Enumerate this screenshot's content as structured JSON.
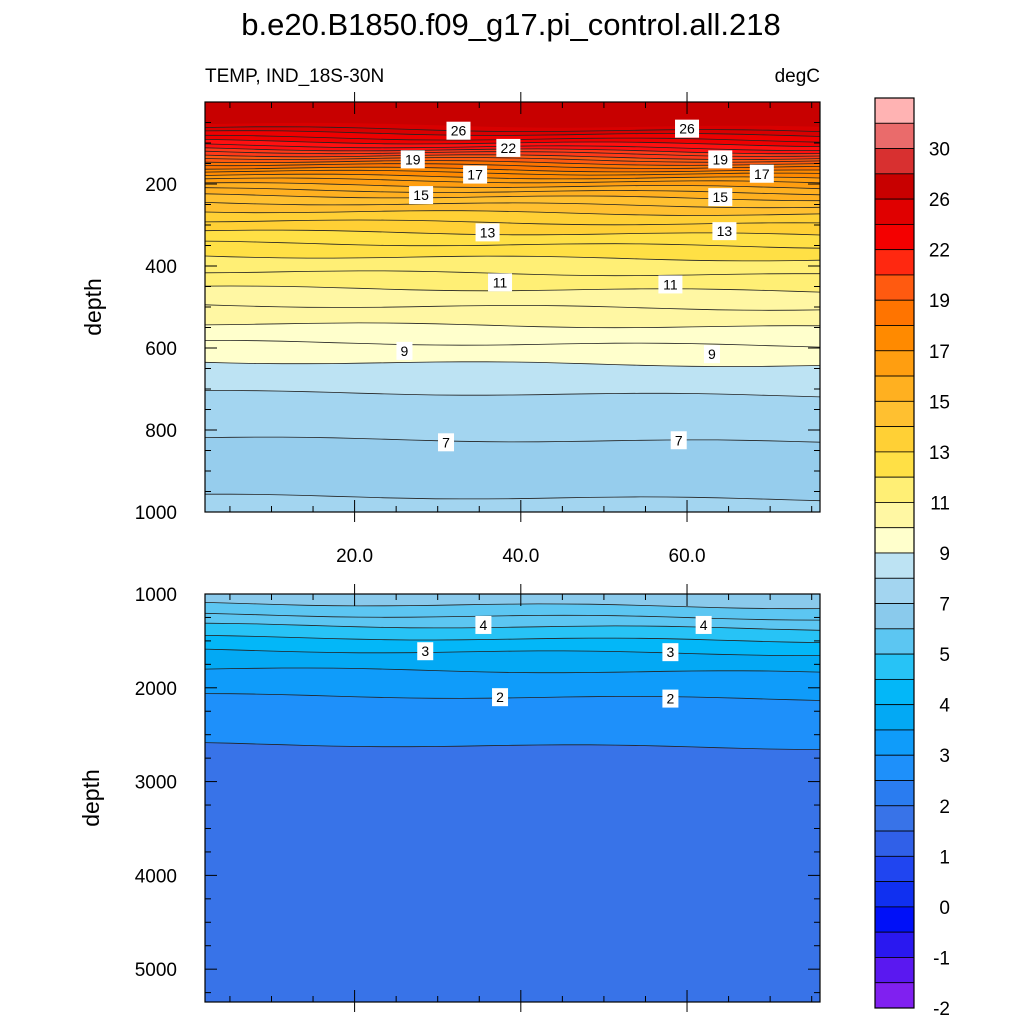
{
  "chart_data": [
    {
      "type": "contour",
      "title": "b.e20.B1850.f09_g17.pi_control.all.218",
      "subtitle_left": "TEMP, IND_18S-30N",
      "subtitle_right": "degC",
      "ylabel": "depth",
      "xlim": [
        2,
        76
      ],
      "ylim": [
        0,
        1000
      ],
      "y_inverted": true,
      "x_ticks": [
        20,
        40,
        60
      ],
      "x_tick_labels": [
        "20.0",
        "40.0",
        "60.0"
      ],
      "y_ticks": [
        200,
        400,
        600,
        800,
        1000
      ],
      "y_tick_labels": [
        "200",
        "400",
        "600",
        "800",
        "1000"
      ],
      "bands": [
        {
          "max": 1000,
          "color": "#a3d5f0"
        },
        {
          "max": 965,
          "color": "#96cded"
        },
        {
          "max": 825,
          "color": "#a3d5f0"
        },
        {
          "max": 712,
          "color": "#bde3f3"
        },
        {
          "max": 638,
          "color": "#ffffcc"
        },
        {
          "max": 545,
          "color": "#fff7a3"
        },
        {
          "max": 457,
          "color": "#ffef75"
        },
        {
          "max": 380,
          "color": "#ffe045"
        },
        {
          "max": 320,
          "color": "#ffd035"
        },
        {
          "max": 270,
          "color": "#ffc030"
        },
        {
          "max": 232,
          "color": "#ffb020"
        },
        {
          "max": 205,
          "color": "#ff9e10"
        },
        {
          "max": 183,
          "color": "#ff8a00"
        },
        {
          "max": 165,
          "color": "#ff7400"
        },
        {
          "max": 148,
          "color": "#ff5a10"
        },
        {
          "max": 133,
          "color": "#ff3a18"
        },
        {
          "max": 118,
          "color": "#ff1010"
        },
        {
          "max": 100,
          "color": "#ee0000"
        },
        {
          "max": 78,
          "color": "#d80000"
        },
        {
          "max": 58,
          "color": "#c80000"
        }
      ],
      "contour_depths": [
        965,
        825,
        712,
        638,
        590,
        545,
        500,
        457,
        418,
        380,
        348,
        320,
        294,
        270,
        250,
        232,
        218,
        205,
        193,
        183,
        173,
        165,
        156,
        148,
        140,
        133,
        125,
        118,
        110,
        100,
        90,
        78,
        68
      ],
      "contour_labels": [
        {
          "text": "26",
          "x": 32.5,
          "y": 70
        },
        {
          "text": "26",
          "x": 60,
          "y": 65
        },
        {
          "text": "22",
          "x": 38.5,
          "y": 112
        },
        {
          "text": "19",
          "x": 27,
          "y": 140
        },
        {
          "text": "19",
          "x": 64,
          "y": 140
        },
        {
          "text": "17",
          "x": 34.5,
          "y": 177
        },
        {
          "text": "17",
          "x": 69,
          "y": 175
        },
        {
          "text": "15",
          "x": 28,
          "y": 227
        },
        {
          "text": "15",
          "x": 64,
          "y": 232
        },
        {
          "text": "13",
          "x": 36,
          "y": 318
        },
        {
          "text": "13",
          "x": 64.5,
          "y": 315
        },
        {
          "text": "11",
          "x": 37.5,
          "y": 440
        },
        {
          "text": "11",
          "x": 58,
          "y": 445
        },
        {
          "text": "9",
          "x": 26,
          "y": 607
        },
        {
          "text": "9",
          "x": 63,
          "y": 615
        },
        {
          "text": "7",
          "x": 31,
          "y": 830
        },
        {
          "text": "7",
          "x": 59,
          "y": 825
        }
      ]
    },
    {
      "type": "contour",
      "ylabel": "depth",
      "xlim": [
        2,
        76
      ],
      "ylim": [
        1000,
        5350
      ],
      "y_inverted": true,
      "y_ticks": [
        1000,
        2000,
        3000,
        4000,
        5000
      ],
      "y_tick_labels": [
        "1000",
        "2000",
        "3000",
        "4000",
        "5000"
      ],
      "bands": [
        {
          "max": 5350,
          "color": "#3873e8"
        },
        {
          "max": 2620,
          "color": "#1e90fa"
        },
        {
          "max": 2100,
          "color": "#0f9cfa"
        },
        {
          "max": 1820,
          "color": "#03a9f4"
        },
        {
          "max": 1620,
          "color": "#03b7f8"
        },
        {
          "max": 1480,
          "color": "#27c3f6"
        },
        {
          "max": 1350,
          "color": "#5cc6f2"
        },
        {
          "max": 1120,
          "color": "#8acaec"
        }
      ],
      "contour_depths": [
        1120,
        1240,
        1350,
        1480,
        1620,
        1820,
        2100,
        2620
      ],
      "contour_labels": [
        {
          "text": "4",
          "x": 35.5,
          "y": 1330
        },
        {
          "text": "4",
          "x": 62,
          "y": 1330
        },
        {
          "text": "3",
          "x": 28.5,
          "y": 1610
        },
        {
          "text": "3",
          "x": 58,
          "y": 1620
        },
        {
          "text": "2",
          "x": 37.5,
          "y": 2100
        },
        {
          "text": "2",
          "x": 58,
          "y": 2115
        }
      ]
    }
  ],
  "colorbar": {
    "labels": [
      "30",
      "26",
      "22",
      "19",
      "17",
      "15",
      "13",
      "11",
      "9",
      "7",
      "5",
      "4",
      "3",
      "2",
      "1",
      "0",
      "-1",
      "-2"
    ],
    "colors": [
      "#ffb3b3",
      "#ea6b6b",
      "#d83030",
      "#c80000",
      "#e00000",
      "#f40000",
      "#ff2810",
      "#ff5a10",
      "#ff7400",
      "#ff8a00",
      "#ff9e10",
      "#ffb020",
      "#ffc030",
      "#ffd035",
      "#ffe045",
      "#ffef75",
      "#fff7a3",
      "#ffffcc",
      "#bde3f3",
      "#a3d5f0",
      "#8acaec",
      "#5cc6f2",
      "#27c3f6",
      "#03b7f8",
      "#03a9f4",
      "#0f9cfa",
      "#1e90fa",
      "#2a7cf0",
      "#3873e8",
      "#3060e8",
      "#2045f0",
      "#1030f0",
      "#0010f8",
      "#2a18f0",
      "#5a18f0",
      "#8020f0"
    ]
  }
}
